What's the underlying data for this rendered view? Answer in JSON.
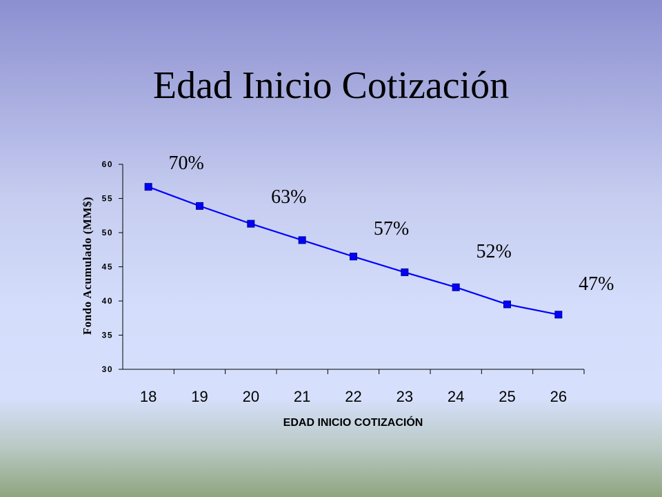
{
  "slide": {
    "title": "Edad Inicio Cotización"
  },
  "chart_data": {
    "type": "line",
    "title": "",
    "xlabel": "EDAD INICIO COTIZACIÓN",
    "ylabel": "Fondo Acumulado (MM$)",
    "categories": [
      "18",
      "19",
      "20",
      "21",
      "22",
      "23",
      "24",
      "25",
      "26"
    ],
    "ylim": [
      30,
      60
    ],
    "yticks": [
      "30",
      "35",
      "40",
      "45",
      "50",
      "55",
      "60"
    ],
    "grid": false,
    "legend": "none",
    "series": [
      {
        "values": [
          56.7,
          53.9,
          51.3,
          48.9,
          46.5,
          44.2,
          42.0,
          39.5,
          38.0
        ],
        "color": "#0000ff"
      }
    ],
    "annotations": [
      {
        "text": "70%",
        "category": "18"
      },
      {
        "text": "63%",
        "category": "20"
      },
      {
        "text": "57%",
        "category": "22"
      },
      {
        "text": "52%",
        "category": "24"
      },
      {
        "text": "47%",
        "category": "26"
      }
    ]
  }
}
